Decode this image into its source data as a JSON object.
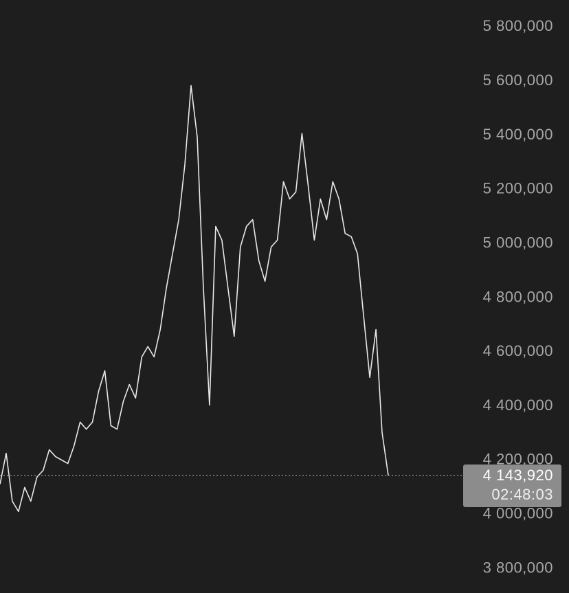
{
  "chart_data": {
    "type": "line",
    "color": "#e8e8e8",
    "values": [
      4112000,
      4226000,
      4049000,
      4011000,
      4100000,
      4049000,
      4138000,
      4163000,
      4239000,
      4214000,
      4201000,
      4188000,
      4252000,
      4341000,
      4315000,
      4341000,
      4455000,
      4531000,
      4328000,
      4315000,
      4417000,
      4480000,
      4430000,
      4582000,
      4620000,
      4582000,
      4683000,
      4836000,
      4963000,
      5089000,
      5292000,
      5584000,
      5394000,
      4836000,
      4404000,
      5064000,
      5013000,
      4836000,
      4658000,
      4988000,
      5064000,
      5089000,
      4937000,
      4861000,
      4988000,
      5013000,
      5229000,
      5165000,
      5191000,
      5407000,
      5216000,
      5013000,
      5165000,
      5089000,
      5229000,
      5165000,
      5038000,
      5026000,
      4963000,
      4734000,
      4506000,
      4683000,
      4303000,
      4143920
    ],
    "ylim": [
      3710000,
      5900000
    ],
    "yticks": [
      {
        "value": 3800000,
        "label": "3 800,000"
      },
      {
        "value": 4000000,
        "label": "4 000,000"
      },
      {
        "value": 4200000,
        "label": "4 200,000"
      },
      {
        "value": 4400000,
        "label": "4 400,000"
      },
      {
        "value": 4600000,
        "label": "4 600,000"
      },
      {
        "value": 4800000,
        "label": "4 800,000"
      },
      {
        "value": 5000000,
        "label": "5 000,000"
      },
      {
        "value": 5200000,
        "label": "5 200,000"
      },
      {
        "value": 5400000,
        "label": "5 400,000"
      },
      {
        "value": 5600000,
        "label": "5 600,000"
      },
      {
        "value": 5800000,
        "label": "5 800,000"
      }
    ],
    "current": {
      "value": 4143920,
      "label": "4 143,920",
      "time": "02:48:03"
    }
  }
}
